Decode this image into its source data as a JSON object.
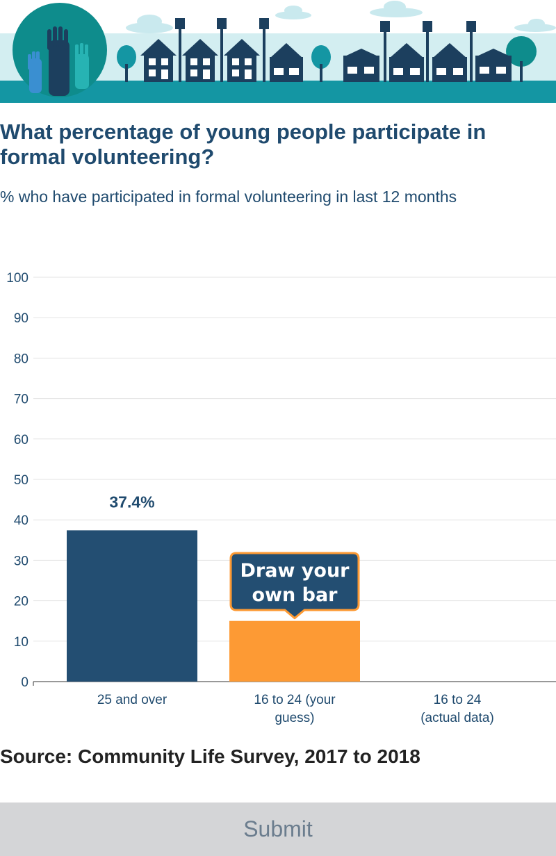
{
  "header": {
    "title": "What percentage of young people participate in formal volunteering?",
    "subtitle": "% who have participated in formal volunteering in last 12 months"
  },
  "source": "Source: Community Life Survey, 2017 to 2018",
  "submit_label": "Submit",
  "draw_prompt": [
    "Draw your",
    "own bar"
  ],
  "colors": {
    "navy": "#234e72",
    "orange": "#fd9a34",
    "teal": "#0e8c8c",
    "sky": "#c9e9ee",
    "gray_button": "#d4d5d7"
  },
  "chart_data": {
    "type": "bar",
    "categories": [
      [
        "25 and over"
      ],
      [
        "16 to 24 (your",
        "guess)"
      ],
      [
        "16 to 24",
        "(actual data)"
      ]
    ],
    "values": [
      37.4,
      15,
      null
    ],
    "data_labels": [
      "37.4%",
      "",
      ""
    ],
    "ylim": [
      0,
      100
    ],
    "yticks": [
      0,
      10,
      20,
      30,
      40,
      50,
      60,
      70,
      80,
      90,
      100
    ],
    "grid": true
  }
}
